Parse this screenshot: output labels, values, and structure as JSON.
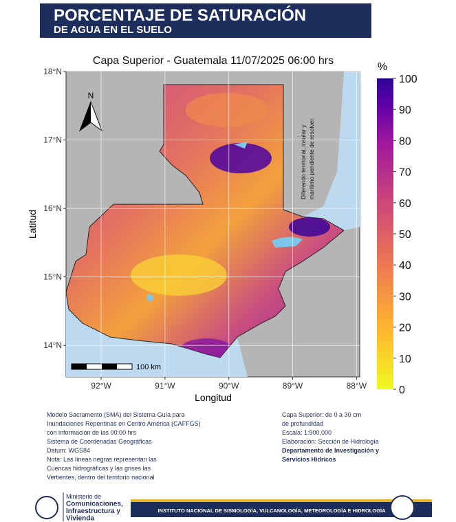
{
  "header": {
    "title": "PORCENTAJE DE SATURACIÓN",
    "subtitle": "DE AGUA EN EL SUELO"
  },
  "map": {
    "title": "Capa Superior - Guatemala 11/07/2025 06:00 hrs",
    "x_label": "Longitud",
    "y_label": "Latitud",
    "xlim": [
      -92.55,
      -87.95
    ],
    "ylim": [
      13.54,
      18
    ],
    "xticks": [
      {
        "value": -92,
        "label": "92°W"
      },
      {
        "value": -91,
        "label": "91°W"
      },
      {
        "value": -90,
        "label": "90°W"
      },
      {
        "value": -89,
        "label": "89°W"
      },
      {
        "value": -88,
        "label": "88°W"
      }
    ],
    "yticks": [
      {
        "value": 14,
        "label": "14°N"
      },
      {
        "value": 15,
        "label": "15°N"
      },
      {
        "value": 16,
        "label": "16°N"
      },
      {
        "value": 17,
        "label": "17°N"
      },
      {
        "value": 18,
        "label": "18°N"
      }
    ],
    "annotation": [
      "Diferendo territorial, insular y",
      "marítimo pendiente de resolver."
    ],
    "north": "N",
    "scale_label": "100 km"
  },
  "colorbar": {
    "title": "%",
    "lim": [
      0,
      100
    ],
    "ticks": [
      0,
      10,
      20,
      30,
      40,
      50,
      60,
      70,
      80,
      90,
      100
    ]
  },
  "notes": {
    "left": [
      "Modelo Sacramento (SMA) del Sistema Guía para",
      "Inundaciones Repentinas en Centro América (CAFFGS)",
      "con información de las 00:00 hrs",
      "Sistema de Coordenadas Geográficas",
      "Datum: WGS84",
      "Nota: Las líneas negras representan las",
      "Cuencas hidrográficas y las grises las",
      "Vertientes, dentro del territorio nacional"
    ],
    "right": [
      "Capa Superior: de 0 a 30 cm",
      "de profundidad",
      "Escala: 1:900,000",
      "Elaboración: Sección de Hidrología"
    ],
    "right_bold": [
      "Departamento de Investigación y",
      "Servicios Hídricos"
    ]
  },
  "footer": {
    "ministry": [
      "Ministerio de",
      "Comunicaciones,",
      "Infraestructura y",
      "Vivienda"
    ],
    "institute": "INSTITUTO NACIONAL DE SISMOLOGÍA, VULCANOLOGÍA, METEOROLOGÍA E HIDROLOGÍA"
  }
}
